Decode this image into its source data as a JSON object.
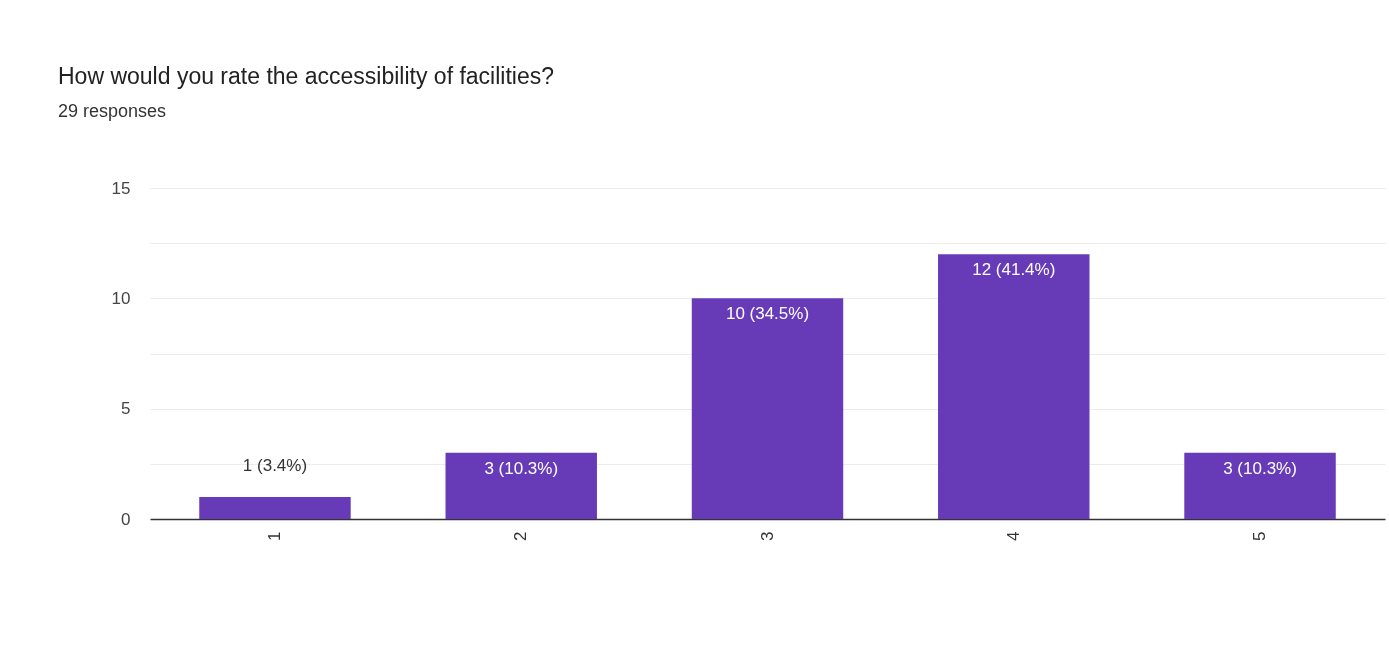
{
  "chart_data": {
    "type": "bar",
    "title": "How would you rate the accessibility of facilities?",
    "subtitle": "29 responses",
    "categories": [
      "1",
      "2",
      "3",
      "4",
      "5"
    ],
    "values": [
      1,
      3,
      10,
      12,
      3
    ],
    "value_labels": [
      "1 (3.4%)",
      "3 (10.3%)",
      "10 (34.5%)",
      "12 (41.4%)",
      "3 (10.3%)"
    ],
    "color": "#673ab7",
    "ylim": [
      0,
      15
    ],
    "yticks": [
      0,
      {
        "value": 2.5,
        "label": null
      },
      5,
      {
        "value": 7.5,
        "label": null
      },
      10,
      {
        "value": 12.5,
        "label": null
      },
      15
    ],
    "grid": "y"
  }
}
